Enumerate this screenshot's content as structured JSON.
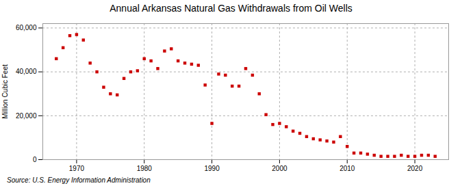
{
  "chart_data": {
    "type": "scatter",
    "title": "Annual Arkansas Natural Gas Withdrawals from Oil Wells",
    "ylabel": "Million Cubic Feet",
    "annotation": "Source: U.S. Energy Information Administration",
    "color": "#cc0000",
    "marker": "square",
    "grid": true,
    "x": [
      1967,
      1968,
      1969,
      1970,
      1971,
      1972,
      1973,
      1974,
      1975,
      1976,
      1977,
      1978,
      1979,
      1980,
      1981,
      1982,
      1983,
      1984,
      1985,
      1986,
      1987,
      1988,
      1989,
      1990,
      1991,
      1992,
      1993,
      1994,
      1995,
      1996,
      1997,
      1998,
      1999,
      2000,
      2001,
      2002,
      2003,
      2004,
      2005,
      2006,
      2007,
      2008,
      2009,
      2010,
      2011,
      2012,
      2013,
      2014,
      2015,
      2016,
      2017,
      2018,
      2019,
      2020,
      2021,
      2022,
      2023
    ],
    "values": [
      46000,
      51000,
      56500,
      57000,
      54500,
      44000,
      40000,
      33000,
      30000,
      29500,
      37000,
      40000,
      40500,
      46000,
      45000,
      41500,
      49500,
      50500,
      45000,
      44000,
      43500,
      43000,
      34000,
      16500,
      39000,
      38500,
      33500,
      33500,
      41500,
      38500,
      30000,
      20500,
      16000,
      16500,
      15000,
      13000,
      12000,
      10500,
      9500,
      9000,
      8500,
      8000,
      10500,
      6000,
      3000,
      3000,
      2500,
      2000,
      1500,
      1500,
      1500,
      2000,
      1500,
      1500,
      2000,
      2000,
      1500
    ],
    "xlim": [
      1965,
      2025
    ],
    "ylim": [
      0,
      62000
    ],
    "xticks": [
      1970,
      1980,
      1990,
      2000,
      2010,
      2020
    ],
    "yticks": [
      0,
      {
        "value": 20000,
        "label": "20,000"
      },
      {
        "value": 40000,
        "label": "40,000"
      },
      {
        "value": 60000,
        "label": "60,000"
      }
    ]
  }
}
